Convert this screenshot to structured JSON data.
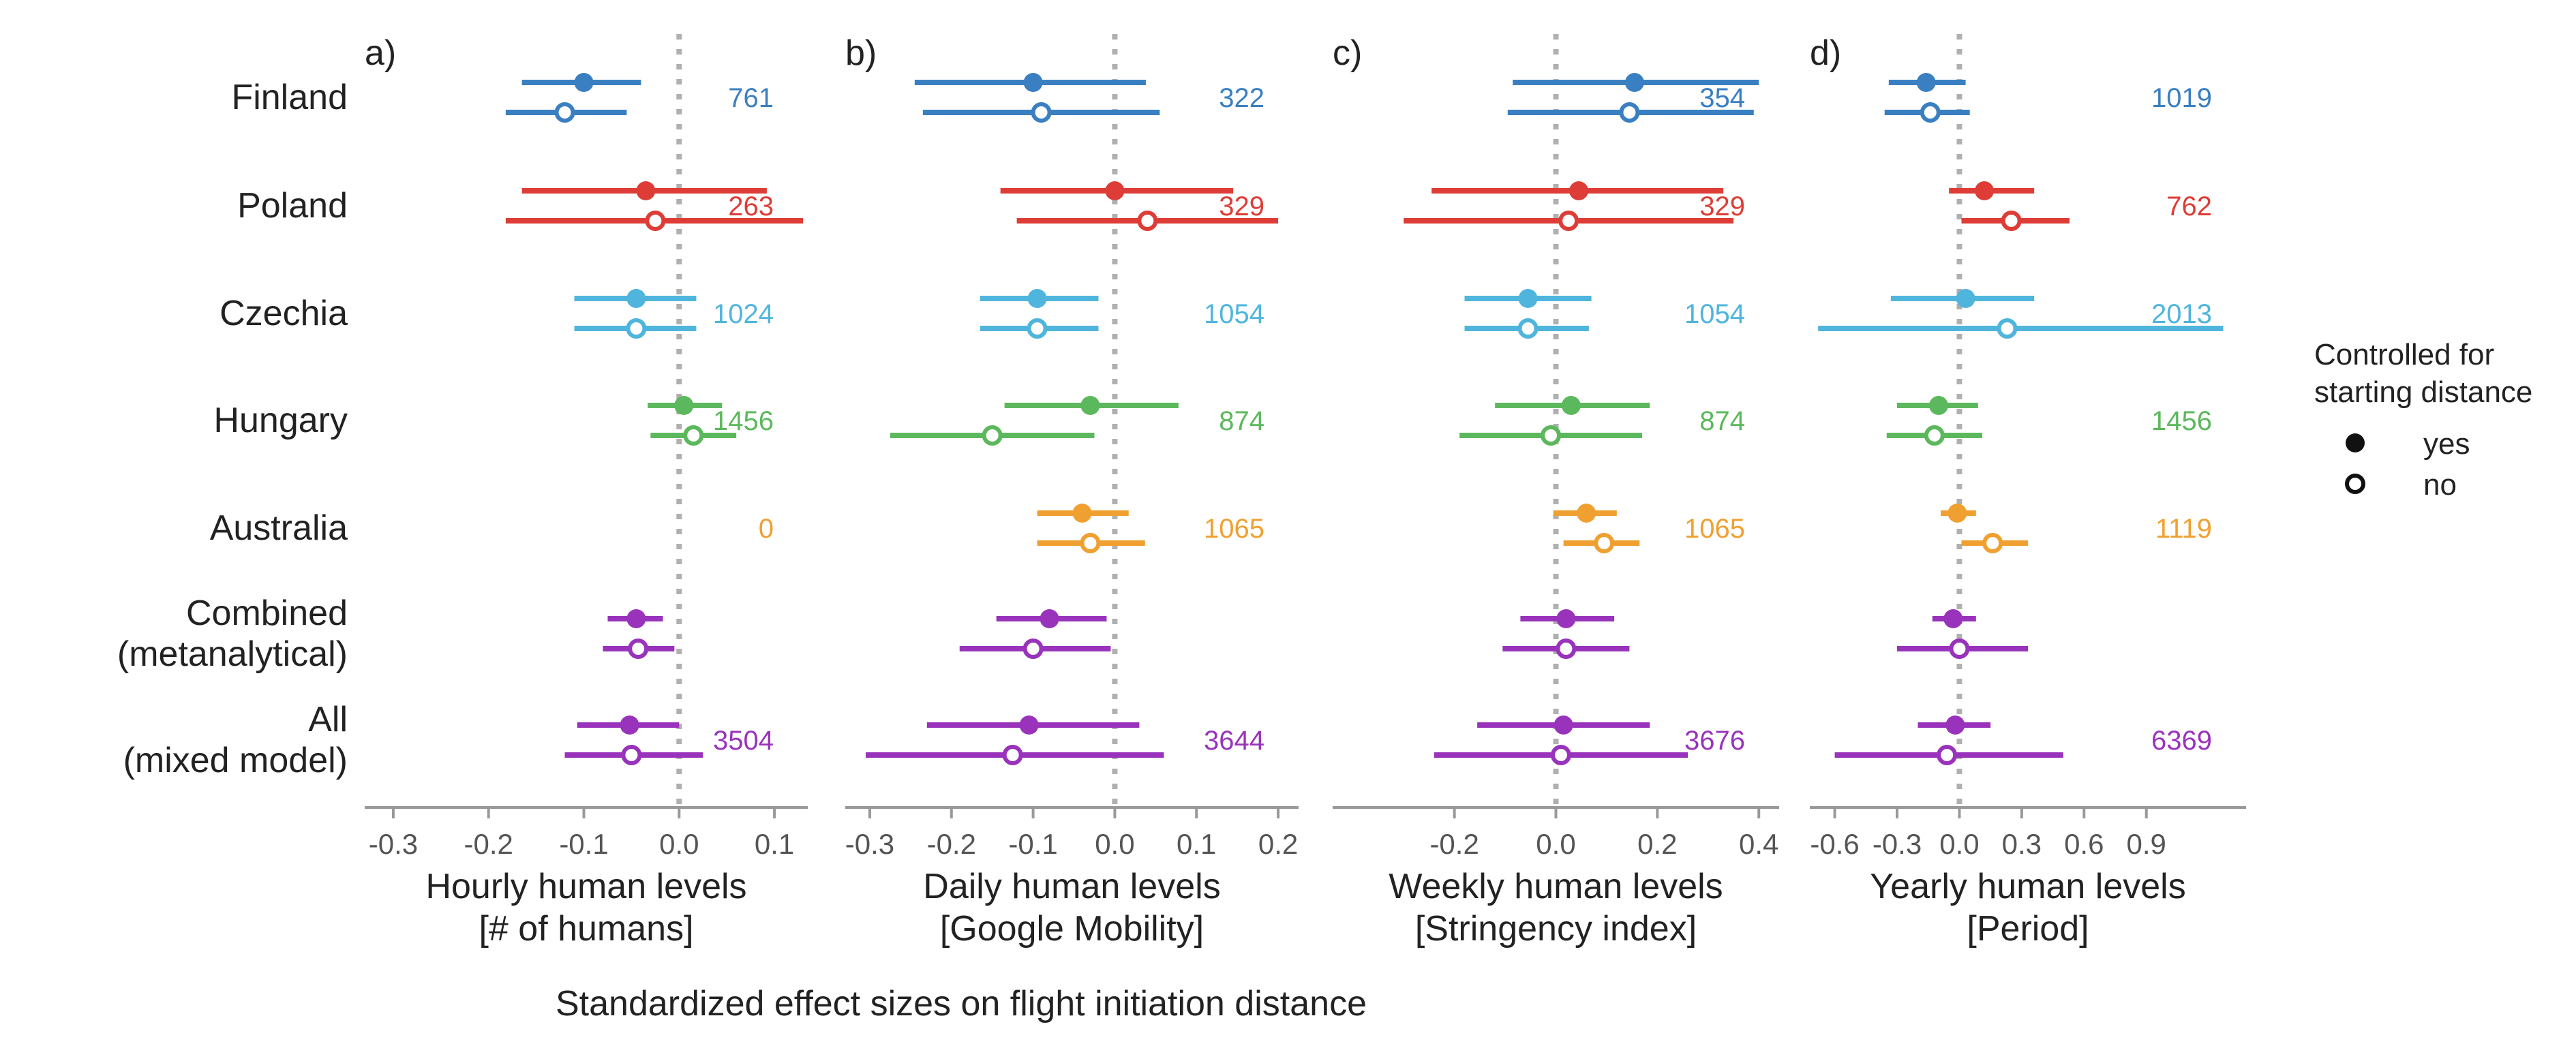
{
  "colors": {
    "Finland": "#3a7fc1",
    "Poland": "#dd3d36",
    "Czechia": "#4fb5dc",
    "Hungary": "#5cb85c",
    "Australia": "#f0a030",
    "Combined": "#9933bb",
    "All": "#9933bb",
    "zero_line": "#b0b0b0",
    "axis": "#999999",
    "text": "#222222",
    "tick_text": "#555555"
  },
  "rows": [
    {
      "key": "Finland",
      "label_lines": [
        "Finland"
      ]
    },
    {
      "key": "Poland",
      "label_lines": [
        "Poland"
      ]
    },
    {
      "key": "Czechia",
      "label_lines": [
        "Czechia"
      ]
    },
    {
      "key": "Hungary",
      "label_lines": [
        "Hungary"
      ]
    },
    {
      "key": "Australia",
      "label_lines": [
        "Australia"
      ]
    },
    {
      "key": "Combined",
      "label_lines": [
        "Combined",
        "(metanalytical)"
      ]
    },
    {
      "key": "All",
      "label_lines": [
        "All",
        "(mixed model)"
      ]
    }
  ],
  "x_caption": "Standardized effect sizes on flight initiation distance",
  "legend": {
    "title_lines": [
      "Controlled for",
      "starting distance"
    ],
    "items": [
      {
        "label": "yes",
        "marker": "filled"
      },
      {
        "label": "no",
        "marker": "open"
      }
    ]
  },
  "chart_data": [
    {
      "type": "scatter",
      "panel": "a)",
      "xlabel_lines": [
        "Hourly human levels",
        "[# of humans]"
      ],
      "xlim": [
        -0.33,
        0.135
      ],
      "xticks": [
        -0.3,
        -0.2,
        -0.1,
        0.0,
        0.1
      ],
      "xtick_labels": [
        "-0.3",
        "-0.2",
        "-0.1",
        "0.0",
        "0.1"
      ],
      "rows": [
        {
          "key": "Finland",
          "n": "761",
          "yes": {
            "est": -0.1,
            "lo": -0.165,
            "hi": -0.04
          },
          "no": {
            "est": -0.12,
            "lo": -0.182,
            "hi": -0.055
          }
        },
        {
          "key": "Poland",
          "n": "263",
          "yes": {
            "est": -0.035,
            "lo": -0.165,
            "hi": 0.092
          },
          "no": {
            "est": -0.025,
            "lo": -0.182,
            "hi": 0.13
          }
        },
        {
          "key": "Czechia",
          "n": "1024",
          "yes": {
            "est": -0.045,
            "lo": -0.11,
            "hi": 0.018
          },
          "no": {
            "est": -0.045,
            "lo": -0.11,
            "hi": 0.018
          }
        },
        {
          "key": "Hungary",
          "n": "1456",
          "yes": {
            "est": 0.005,
            "lo": -0.033,
            "hi": 0.045
          },
          "no": {
            "est": 0.015,
            "lo": -0.03,
            "hi": 0.06
          }
        },
        {
          "key": "Australia",
          "n": "0",
          "yes": null,
          "no": null
        },
        {
          "key": "Combined",
          "n": "",
          "yes": {
            "est": -0.045,
            "lo": -0.075,
            "hi": -0.017
          },
          "no": {
            "est": -0.043,
            "lo": -0.08,
            "hi": -0.005
          }
        },
        {
          "key": "All",
          "n": "3504",
          "yes": {
            "est": -0.052,
            "lo": -0.107,
            "hi": 0.0
          },
          "no": {
            "est": -0.05,
            "lo": -0.12,
            "hi": 0.025
          }
        }
      ]
    },
    {
      "type": "scatter",
      "panel": "b)",
      "xlabel_lines": [
        "Daily human levels",
        "[Google Mobility]"
      ],
      "xlim": [
        -0.33,
        0.225
      ],
      "xticks": [
        -0.3,
        -0.2,
        -0.1,
        0.0,
        0.1,
        0.2
      ],
      "xtick_labels": [
        "-0.3",
        "-0.2",
        "-0.1",
        "0.0",
        "0.1",
        "0.2"
      ],
      "rows": [
        {
          "key": "Finland",
          "n": "322",
          "yes": {
            "est": -0.1,
            "lo": -0.245,
            "hi": 0.038
          },
          "no": {
            "est": -0.09,
            "lo": -0.235,
            "hi": 0.055
          }
        },
        {
          "key": "Poland",
          "n": "329",
          "yes": {
            "est": 0.0,
            "lo": -0.14,
            "hi": 0.145
          },
          "no": {
            "est": 0.04,
            "lo": -0.12,
            "hi": 0.2
          }
        },
        {
          "key": "Czechia",
          "n": "1054",
          "yes": {
            "est": -0.095,
            "lo": -0.165,
            "hi": -0.02
          },
          "no": {
            "est": -0.095,
            "lo": -0.165,
            "hi": -0.02
          }
        },
        {
          "key": "Hungary",
          "n": "874",
          "yes": {
            "est": -0.03,
            "lo": -0.135,
            "hi": 0.078
          },
          "no": {
            "est": -0.15,
            "lo": -0.275,
            "hi": -0.025
          }
        },
        {
          "key": "Australia",
          "n": "1065",
          "yes": {
            "est": -0.04,
            "lo": -0.095,
            "hi": 0.017
          },
          "no": {
            "est": -0.03,
            "lo": -0.095,
            "hi": 0.037
          }
        },
        {
          "key": "Combined",
          "n": "",
          "yes": {
            "est": -0.08,
            "lo": -0.145,
            "hi": -0.01
          },
          "no": {
            "est": -0.1,
            "lo": -0.19,
            "hi": -0.005
          }
        },
        {
          "key": "All",
          "n": "3644",
          "yes": {
            "est": -0.105,
            "lo": -0.23,
            "hi": 0.03
          },
          "no": {
            "est": -0.125,
            "lo": -0.305,
            "hi": 0.06
          }
        }
      ]
    },
    {
      "type": "scatter",
      "panel": "c)",
      "xlabel_lines": [
        "Weekly human levels",
        "[Stringency index]"
      ],
      "xlim": [
        -0.44,
        0.44
      ],
      "xticks": [
        -0.2,
        0.0,
        0.2,
        0.4
      ],
      "xtick_labels": [
        "-0.2",
        "0.0",
        "0.2",
        "0.4"
      ],
      "rows": [
        {
          "key": "Finland",
          "n": "354",
          "yes": {
            "est": 0.155,
            "lo": -0.085,
            "hi": 0.4
          },
          "no": {
            "est": 0.145,
            "lo": -0.095,
            "hi": 0.39
          }
        },
        {
          "key": "Poland",
          "n": "329",
          "yes": {
            "est": 0.045,
            "lo": -0.245,
            "hi": 0.33
          },
          "no": {
            "est": 0.025,
            "lo": -0.3,
            "hi": 0.35
          }
        },
        {
          "key": "Czechia",
          "n": "1054",
          "yes": {
            "est": -0.055,
            "lo": -0.18,
            "hi": 0.07
          },
          "no": {
            "est": -0.055,
            "lo": -0.18,
            "hi": 0.065
          }
        },
        {
          "key": "Hungary",
          "n": "874",
          "yes": {
            "est": 0.03,
            "lo": -0.12,
            "hi": 0.185
          },
          "no": {
            "est": -0.01,
            "lo": -0.19,
            "hi": 0.17
          }
        },
        {
          "key": "Australia",
          "n": "1065",
          "yes": {
            "est": 0.06,
            "lo": -0.005,
            "hi": 0.12
          },
          "no": {
            "est": 0.095,
            "lo": 0.015,
            "hi": 0.165
          }
        },
        {
          "key": "Combined",
          "n": "",
          "yes": {
            "est": 0.02,
            "lo": -0.07,
            "hi": 0.115
          },
          "no": {
            "est": 0.02,
            "lo": -0.105,
            "hi": 0.145
          }
        },
        {
          "key": "All",
          "n": "3676",
          "yes": {
            "est": 0.015,
            "lo": -0.155,
            "hi": 0.185
          },
          "no": {
            "est": 0.01,
            "lo": -0.24,
            "hi": 0.26
          }
        }
      ]
    },
    {
      "type": "scatter",
      "panel": "d)",
      "xlabel_lines": [
        "Yearly human levels",
        "[Period]"
      ],
      "xlim": [
        -0.72,
        1.38
      ],
      "xticks": [
        -0.6,
        -0.3,
        0.0,
        0.3,
        0.6,
        0.9
      ],
      "xtick_labels": [
        "-0.6",
        "-0.3",
        "0.0",
        "0.3",
        "0.6",
        "0.9"
      ],
      "rows": [
        {
          "key": "Finland",
          "n": "1019",
          "yes": {
            "est": -0.16,
            "lo": -0.34,
            "hi": 0.03
          },
          "no": {
            "est": -0.14,
            "lo": -0.36,
            "hi": 0.05
          }
        },
        {
          "key": "Poland",
          "n": "762",
          "yes": {
            "est": 0.12,
            "lo": -0.05,
            "hi": 0.36
          },
          "no": {
            "est": 0.25,
            "lo": 0.01,
            "hi": 0.53
          }
        },
        {
          "key": "Czechia",
          "n": "2013",
          "yes": {
            "est": 0.03,
            "lo": -0.33,
            "hi": 0.36
          },
          "no": {
            "est": 0.23,
            "lo": -0.68,
            "hi": 1.27
          }
        },
        {
          "key": "Hungary",
          "n": "1456",
          "yes": {
            "est": -0.1,
            "lo": -0.3,
            "hi": 0.09
          },
          "no": {
            "est": -0.12,
            "lo": -0.35,
            "hi": 0.11
          }
        },
        {
          "key": "Australia",
          "n": "1119",
          "yes": {
            "est": -0.01,
            "lo": -0.09,
            "hi": 0.08
          },
          "no": {
            "est": 0.16,
            "lo": 0.01,
            "hi": 0.33
          }
        },
        {
          "key": "Combined",
          "n": "",
          "yes": {
            "est": -0.03,
            "lo": -0.13,
            "hi": 0.08
          },
          "no": {
            "est": 0.0,
            "lo": -0.3,
            "hi": 0.33
          }
        },
        {
          "key": "All",
          "n": "6369",
          "yes": {
            "est": -0.02,
            "lo": -0.2,
            "hi": 0.15
          },
          "no": {
            "est": -0.06,
            "lo": -0.6,
            "hi": 0.5
          }
        }
      ]
    }
  ]
}
